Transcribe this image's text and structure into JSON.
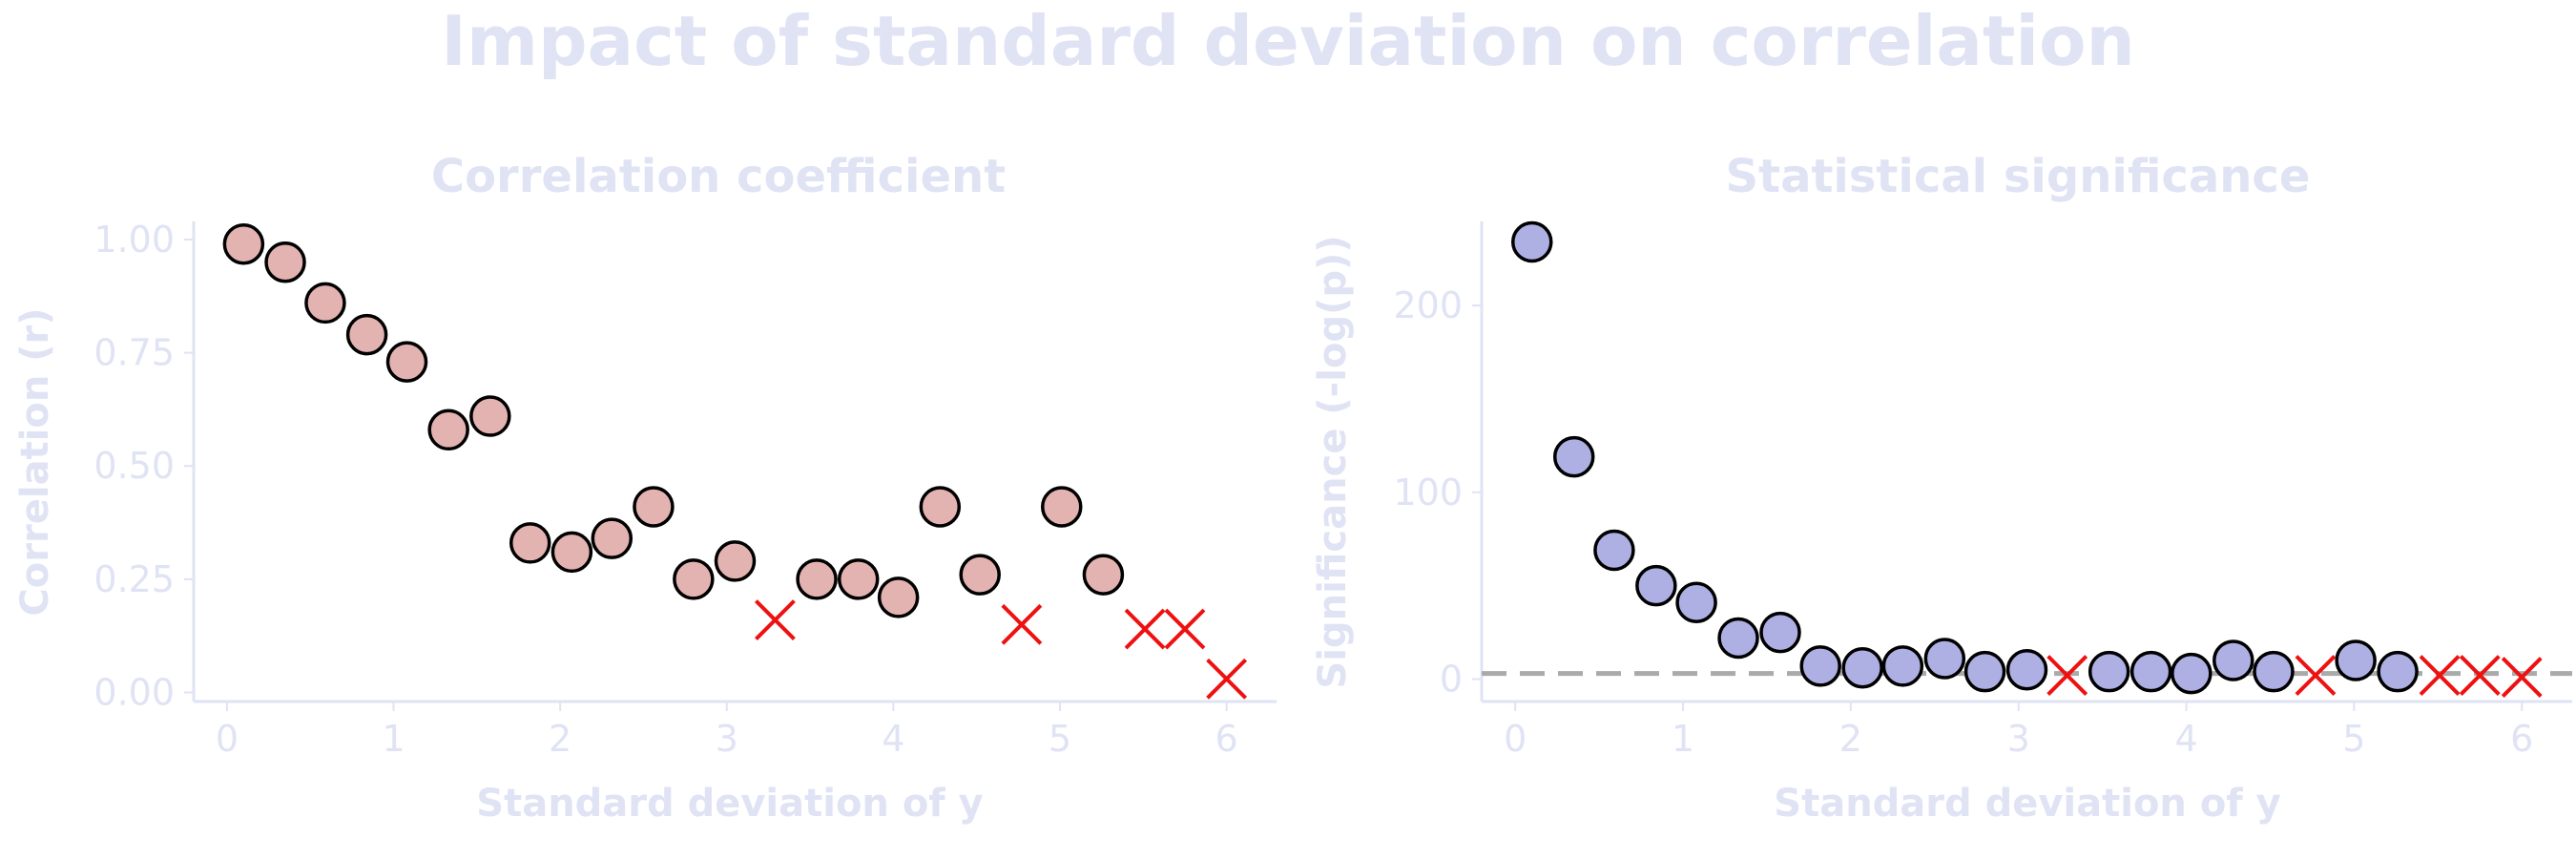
{
  "title": "Impact of standard deviation on correlation",
  "colors": {
    "text": "#dfe3f4",
    "axis": "#dfe3f4",
    "corr_marker": "#e3b3b1",
    "sig_marker": "#aeb0e4",
    "marker_edge": "#000000",
    "nonsig_marker": "#ee1111",
    "threshold_line": "#aaaaaa"
  },
  "chart_data": [
    {
      "type": "scatter",
      "title": "Correlation coefficient",
      "xlabel": "Standard deviation of y",
      "ylabel": "Correlation (r)",
      "xlim": [
        -0.2,
        6.3
      ],
      "ylim": [
        -0.02,
        1.04
      ],
      "xticks": [
        "0",
        "1",
        "2",
        "3",
        "4",
        "5",
        "6"
      ],
      "yticks": [
        "0.00",
        "0.25",
        "0.50",
        "0.75",
        "1.00"
      ],
      "grid": false,
      "series": [
        {
          "marker": "circle",
          "points": [
            [
              0.1,
              0.99
            ],
            [
              0.35,
              0.95
            ],
            [
              0.59,
              0.86
            ],
            [
              0.84,
              0.79
            ],
            [
              1.08,
              0.73
            ],
            [
              1.33,
              0.58
            ],
            [
              1.58,
              0.61
            ],
            [
              1.82,
              0.33
            ],
            [
              2.07,
              0.31
            ],
            [
              2.31,
              0.34
            ],
            [
              2.56,
              0.41
            ],
            [
              2.8,
              0.25
            ],
            [
              3.05,
              0.29
            ],
            [
              3.54,
              0.25
            ],
            [
              3.79,
              0.25
            ],
            [
              4.03,
              0.21
            ],
            [
              4.28,
              0.41
            ],
            [
              4.52,
              0.26
            ],
            [
              5.01,
              0.41
            ],
            [
              5.26,
              0.26
            ]
          ]
        },
        {
          "marker": "x",
          "points": [
            [
              3.29,
              0.16
            ],
            [
              4.77,
              0.15
            ],
            [
              5.51,
              0.14
            ],
            [
              5.75,
              0.14
            ],
            [
              6.0,
              0.03
            ]
          ]
        }
      ]
    },
    {
      "type": "scatter",
      "title": "Statistical significance",
      "xlabel": "Standard deviation of y",
      "ylabel": "Significance (-log(p))",
      "xlim": [
        -0.2,
        6.3
      ],
      "ylim": [
        -12,
        245
      ],
      "xticks": [
        "0",
        "1",
        "2",
        "3",
        "4",
        "5",
        "6"
      ],
      "yticks": [
        "0",
        "100",
        "200"
      ],
      "grid": false,
      "threshold": 3,
      "series": [
        {
          "marker": "circle",
          "points": [
            [
              0.1,
              234
            ],
            [
              0.35,
              119
            ],
            [
              0.59,
              69
            ],
            [
              0.84,
              50
            ],
            [
              1.08,
              41
            ],
            [
              1.33,
              22
            ],
            [
              1.58,
              25
            ],
            [
              1.82,
              7
            ],
            [
              2.07,
              6
            ],
            [
              2.31,
              7
            ],
            [
              2.56,
              11
            ],
            [
              2.8,
              4
            ],
            [
              3.05,
              5
            ],
            [
              3.54,
              4
            ],
            [
              3.79,
              4
            ],
            [
              4.03,
              3
            ],
            [
              4.28,
              10
            ],
            [
              4.52,
              4
            ],
            [
              5.01,
              10
            ],
            [
              5.26,
              4
            ]
          ]
        },
        {
          "marker": "x",
          "points": [
            [
              3.29,
              2
            ],
            [
              4.77,
              2
            ],
            [
              5.51,
              2
            ],
            [
              5.75,
              2
            ],
            [
              6.0,
              1
            ]
          ]
        }
      ]
    }
  ]
}
